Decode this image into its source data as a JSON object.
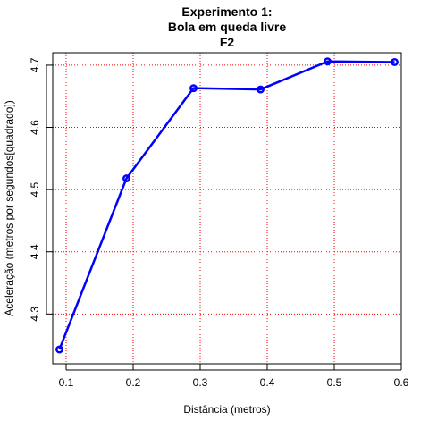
{
  "chart_data": {
    "type": "line",
    "title_lines": [
      "Experimento 1:",
      "Bola em queda livre",
      "F2"
    ],
    "xlabel": "Distância (metros)",
    "ylabel": "Aceleração (metros por segundos[quadrado])",
    "xlim": [
      0.08,
      0.6
    ],
    "ylim": [
      4.22,
      4.72
    ],
    "x_ticks": [
      0.1,
      0.2,
      0.3,
      0.4,
      0.5,
      0.6
    ],
    "y_ticks": [
      4.3,
      4.4,
      4.5,
      4.6,
      4.7
    ],
    "grid": true,
    "grid_color": "#ff0000",
    "series": [
      {
        "color": "#0000ff",
        "x": [
          0.09,
          0.19,
          0.29,
          0.39,
          0.49,
          0.59
        ],
        "y": [
          4.243,
          4.518,
          4.663,
          4.661,
          4.706,
          4.705
        ]
      }
    ]
  }
}
